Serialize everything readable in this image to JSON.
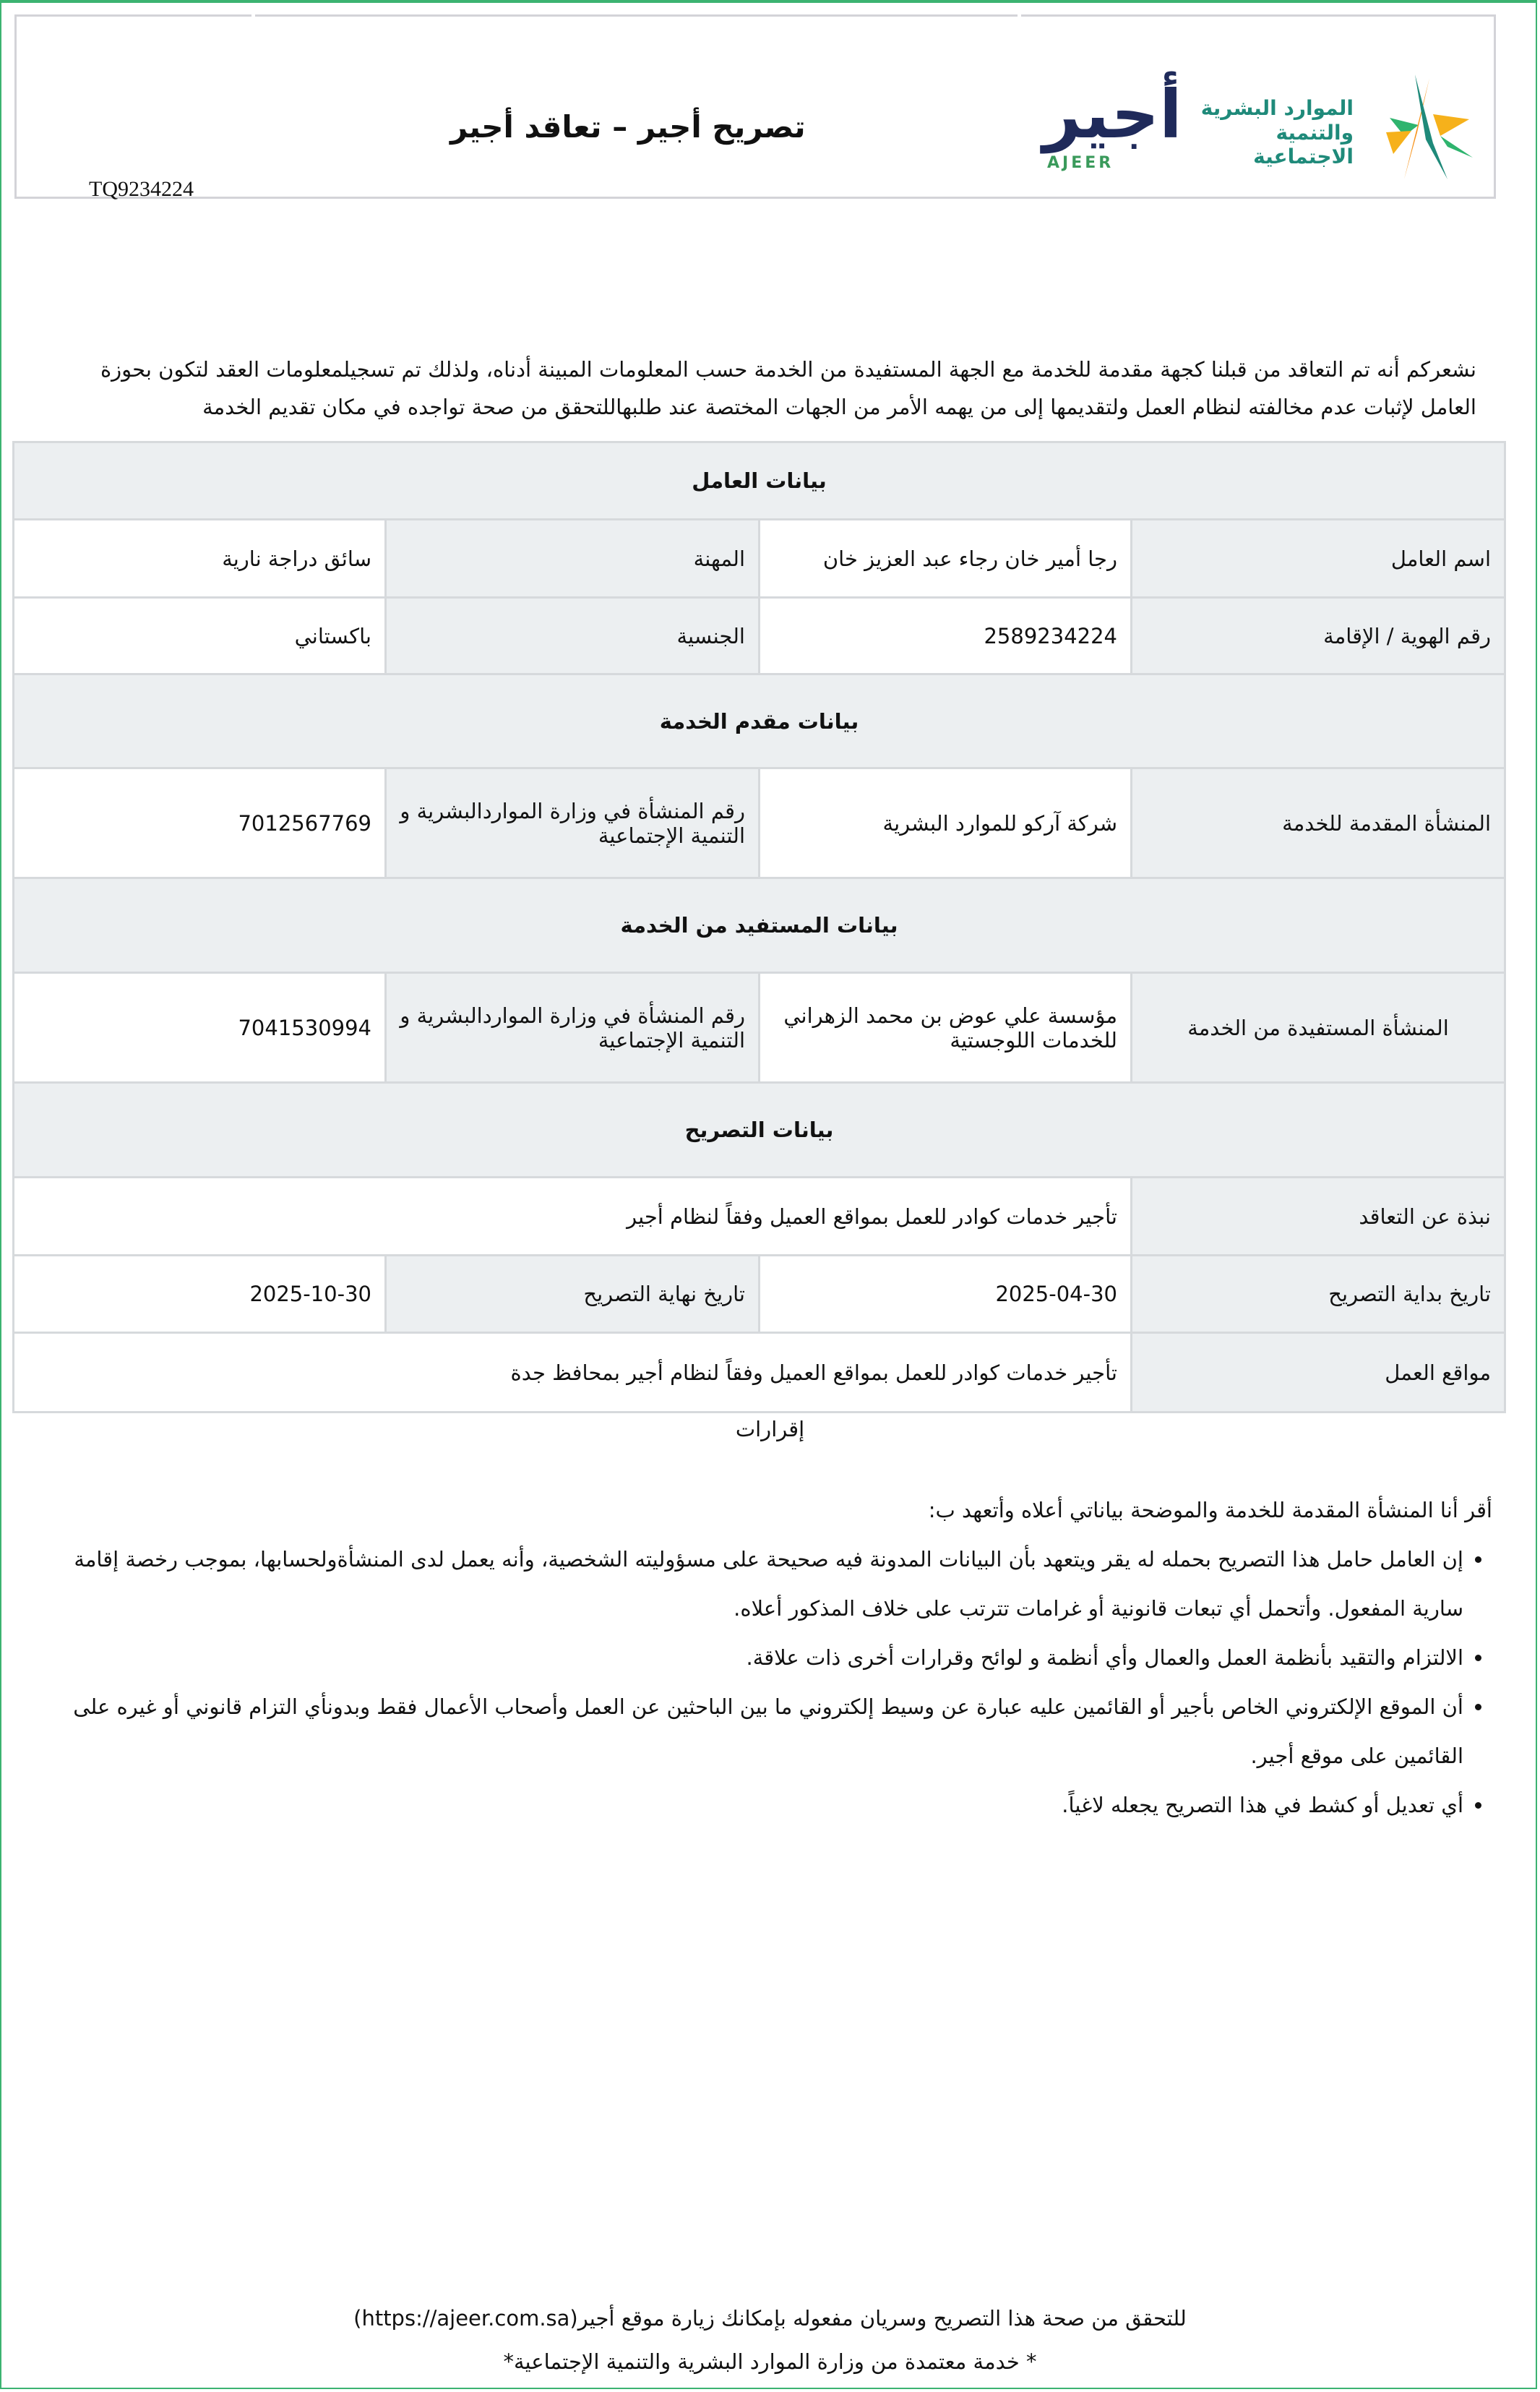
{
  "header": {
    "title": "تصريح أجير – تعاقد أجير",
    "reference": "TQ9234224",
    "logo_ajeer_ar": "أجير",
    "logo_ajeer_en": "AJEER",
    "logo_ministry": "الموارد البشرية والتنمية الاجتماعية"
  },
  "intro": "نشعركم أنه تم التعاقد من قبلنا كجهة مقدمة للخدمة مع الجهة المستفيدة من الخدمة حسب المعلومات المبينة أدناه، ولذلك تم تسجيلمعلومات العقد لتكون بحوزة العامل لإثبات عدم مخالفته لنظام العمل ولتقديمها إلى من يهمه الأمر من الجهات المختصة عند طلبهاللتحقق من صحة تواجده في مكان تقديم الخدمة",
  "worker": {
    "section": "بيانات العامل",
    "name_label": "اسم العامل",
    "name": "رجا أمير خان رجاء عبد العزيز خان",
    "profession_label": "المهنة",
    "profession": "سائق دراجة نارية",
    "id_label": "رقم الهوية / الإقامة",
    "id": "2589234224",
    "nationality_label": "الجنسية",
    "nationality": "باكستاني"
  },
  "provider": {
    "section": "بيانات مقدم الخدمة",
    "org_label": "المنشأة المقدمة للخدمة",
    "org": "شركة آركو للموارد البشرية",
    "number_label": "رقم المنشأة في وزارة المواردالبشرية و التنمية الإجتماعية",
    "number": "7012567769"
  },
  "beneficiary": {
    "section": "بيانات المستفيد من الخدمة",
    "org_label": "المنشأة المستفيدة من الخدمة",
    "org": "مؤسسة علي عوض بن محمد الزهراني للخدمات اللوجستية",
    "number_label": "رقم المنشأة في وزارة المواردالبشرية و التنمية الإجتماعية",
    "number": "7041530994"
  },
  "permit": {
    "section": "بيانات التصريح",
    "summary_label": "نبذة عن التعاقد",
    "summary": "تأجير خدمات كوادر للعمل بمواقع العميل وفقاً لنظام أجير",
    "start_label": "تاريخ بداية التصريح",
    "start": "2025-04-30",
    "end_label": "تاريخ نهاية التصريح",
    "end": "2025-10-30",
    "locations_label": "مواقع العمل",
    "locations": "تأجير خدمات كوادر للعمل بمواقع العميل وفقاً لنظام أجير بمحافظ جدة"
  },
  "acknowledgements": {
    "title": "إقرارات",
    "intro": "أقر أنا المنشأة المقدمة للخدمة والموضحة بياناتي أعلاه وأتعهد ب:",
    "items": [
      "إن العامل حامل هذا التصريح بحمله له يقر ويتعهد بأن البيانات المدونة فيه صحيحة على مسؤوليته الشخصية، وأنه يعمل لدى المنشأةولحسابها، بموجب رخصة إقامة سارية المفعول. وأتحمل أي تبعات قانونية أو غرامات تترتب على خلاف المذكور أعلاه.",
      "الالتزام والتقيد بأنظمة العمل والعمال وأي أنظمة و لوائح وقرارات أخرى ذات علاقة.",
      "أن الموقع الإلكتروني الخاص بأجير أو القائمين عليه عبارة عن وسيط إلكتروني ما بين الباحثين عن العمل وأصحاب الأعمال فقط وبدونأي التزام قانوني أو غيره على القائمين على موقع أجير.",
      "أي تعديل أو كشط في هذا التصريح يجعله لاغياً."
    ]
  },
  "footer": {
    "verify": "للتحقق من صحة هذا التصريح وسريان مفعوله بإمكانك زيارة موقع أجير(https://ajeer.com.sa)",
    "note": "* خدمة معتمدة من وزارة الموارد البشرية والتنمية الإجتماعية*"
  },
  "colors": {
    "frame": "#3cb371",
    "label_bg": "#eceff1",
    "border": "#d6d9dc",
    "ajeer_navy": "#1f2a5a",
    "ministry_teal": "#1f8a7a"
  }
}
